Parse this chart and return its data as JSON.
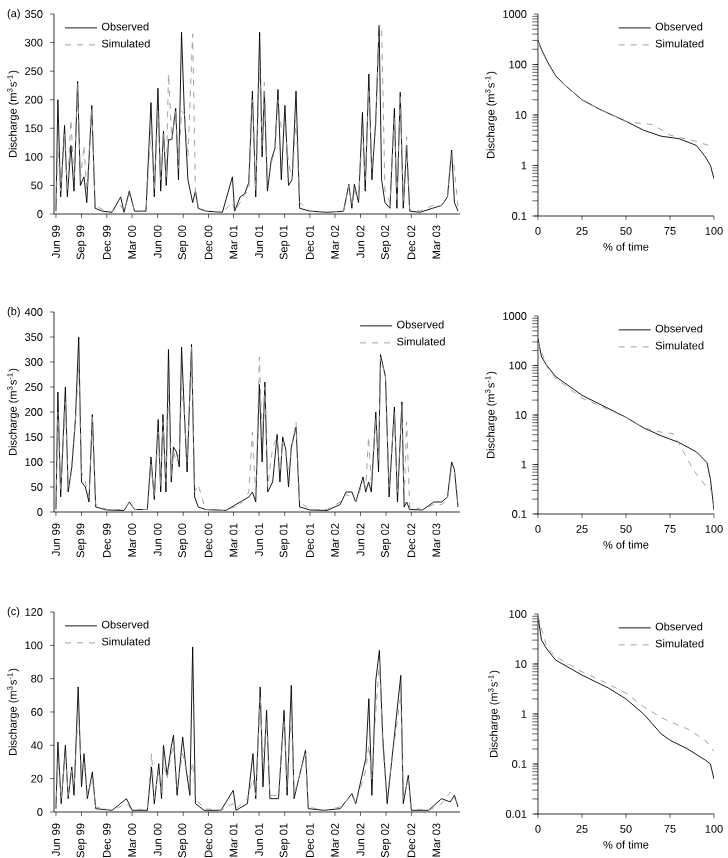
{
  "chart_data": [
    {
      "type": "line",
      "title": "(a)",
      "ylabel": "Discharge (m$^{3}$s$^{-1}$)",
      "legend": "top left",
      "xlim": [
        "1999-05-25",
        "2003-05-25"
      ],
      "ylim": [
        0,
        350
      ],
      "yticks": [
        0,
        50,
        100,
        150,
        200,
        250,
        300,
        350
      ],
      "xticks": [
        {
          "value": "1999-06-01",
          "label": "Jun 99"
        },
        {
          "value": "1999-09-01",
          "label": "Sep 99"
        },
        {
          "value": "1999-12-01",
          "label": "Dec 99"
        },
        {
          "value": "2000-03-01",
          "label": "Mar 00"
        },
        {
          "value": "2000-06-01",
          "label": "Jun 00"
        },
        {
          "value": "2000-09-01",
          "label": "Sep 00"
        },
        {
          "value": "2000-12-01",
          "label": "Dec 00"
        },
        {
          "value": "2001-03-01",
          "label": "Mar 01"
        },
        {
          "value": "2001-06-01",
          "label": "Jun 01"
        },
        {
          "value": "2001-09-01",
          "label": "Sep 01"
        },
        {
          "value": "2001-12-01",
          "label": "Dec 01"
        },
        {
          "value": "2002-03-01",
          "label": "Mar 02"
        },
        {
          "value": "2002-06-01",
          "label": "Jun 02"
        },
        {
          "value": "2002-09-01",
          "label": "Sep 02"
        },
        {
          "value": "2002-12-01",
          "label": "Dec 02"
        },
        {
          "value": "2003-03-01",
          "label": "Mar 03"
        }
      ],
      "x": [
        "1999-06-01",
        "1999-06-08",
        "1999-06-18",
        "1999-07-02",
        "1999-07-12",
        "1999-07-25",
        "1999-08-05",
        "1999-08-18",
        "1999-08-28",
        "1999-09-10",
        "1999-09-20",
        "1999-10-08",
        "1999-10-20",
        "1999-11-15",
        "1999-12-20",
        "2000-01-20",
        "2000-02-01",
        "2000-02-20",
        "2000-03-10",
        "2000-04-20",
        "2000-05-08",
        "2000-05-20",
        "2000-06-02",
        "2000-06-12",
        "2000-06-22",
        "2000-07-02",
        "2000-07-10",
        "2000-07-22",
        "2000-08-05",
        "2000-08-15",
        "2000-08-26",
        "2000-09-05",
        "2000-09-18",
        "2000-10-05",
        "2000-10-15",
        "2000-10-25",
        "2000-11-20",
        "2001-01-20",
        "2001-02-25",
        "2001-03-05",
        "2001-03-25",
        "2001-04-10",
        "2001-04-25",
        "2001-05-08",
        "2001-05-20",
        "2001-06-03",
        "2001-06-12",
        "2001-06-20",
        "2001-07-01",
        "2001-07-15",
        "2001-07-28",
        "2001-08-08",
        "2001-08-20",
        "2001-09-02",
        "2001-09-15",
        "2001-09-28",
        "2001-10-12",
        "2001-10-25",
        "2001-12-01",
        "2002-02-01",
        "2002-04-01",
        "2002-04-20",
        "2002-05-01",
        "2002-05-10",
        "2002-05-25",
        "2002-06-08",
        "2002-06-18",
        "2002-07-01",
        "2002-07-12",
        "2002-07-26",
        "2002-08-07",
        "2002-08-16",
        "2002-08-28",
        "2002-09-15",
        "2002-10-01",
        "2002-10-10",
        "2002-10-22",
        "2002-11-02",
        "2002-11-14",
        "2002-11-25",
        "2003-01-01",
        "2003-02-15",
        "2003-03-20",
        "2003-04-10",
        "2003-04-25",
        "2003-05-05",
        "2003-05-18"
      ],
      "series": [
        {
          "name": "Observed",
          "color": "#000000",
          "line_style": "solid",
          "values": [
            5,
            200,
            30,
            155,
            30,
            120,
            40,
            232,
            50,
            65,
            20,
            190,
            10,
            5,
            3,
            30,
            3,
            40,
            5,
            5,
            195,
            30,
            220,
            40,
            145,
            50,
            130,
            130,
            185,
            60,
            318,
            180,
            60,
            20,
            40,
            10,
            5,
            3,
            65,
            5,
            30,
            35,
            55,
            215,
            30,
            318,
            100,
            215,
            40,
            95,
            115,
            218,
            60,
            190,
            50,
            60,
            215,
            10,
            5,
            3,
            5,
            52,
            10,
            52,
            20,
            178,
            40,
            245,
            60,
            165,
            330,
            60,
            20,
            10,
            185,
            10,
            213,
            10,
            120,
            5,
            3,
            10,
            15,
            30,
            112,
            20,
            5
          ]
        },
        {
          "name": "Simulated",
          "color": "#999999",
          "line_style": "dashed",
          "values": [
            5,
            120,
            40,
            140,
            40,
            165,
            60,
            230,
            60,
            120,
            40,
            185,
            15,
            8,
            4,
            15,
            5,
            35,
            5,
            5,
            150,
            40,
            180,
            60,
            140,
            60,
            245,
            130,
            180,
            80,
            180,
            175,
            100,
            315,
            40,
            15,
            5,
            3,
            20,
            5,
            20,
            35,
            40,
            200,
            40,
            260,
            120,
            230,
            60,
            90,
            110,
            200,
            150,
            150,
            90,
            60,
            165,
            20,
            5,
            3,
            5,
            50,
            15,
            40,
            25,
            150,
            60,
            220,
            80,
            150,
            330,
            330,
            40,
            20,
            170,
            20,
            210,
            20,
            135,
            8,
            5,
            15,
            15,
            30,
            110,
            80,
            10
          ]
        }
      ]
    },
    {
      "type": "line",
      "xlabel": "% of time",
      "ylabel": "Discharge (m$^{3}$s$^{-1}$)",
      "legend": "top right",
      "log": true,
      "xlim": [
        0,
        100
      ],
      "xticks": [
        0,
        25,
        50,
        75,
        100
      ],
      "ylim": [
        0.1,
        1000
      ],
      "yticks": [
        0.1,
        1,
        10,
        100,
        1000
      ],
      "series": [
        {
          "name": "Observed",
          "color": "#000000",
          "line_style": "solid",
          "x": [
            0,
            2,
            5,
            10,
            15,
            25,
            35,
            50,
            60,
            70,
            80,
            90,
            95,
            98,
            100
          ],
          "values": [
            300,
            200,
            120,
            60,
            40,
            20,
            13,
            7.5,
            5,
            3.8,
            3.4,
            2.5,
            1.5,
            1,
            0.55
          ]
        },
        {
          "name": "Simulated",
          "color": "#999999",
          "line_style": "dashed",
          "x": [
            0,
            2,
            5,
            10,
            15,
            25,
            35,
            50,
            55,
            65,
            75,
            80,
            90,
            100
          ],
          "values": [
            280,
            190,
            115,
            58,
            40,
            20,
            13,
            7.5,
            7,
            6.5,
            4,
            3.6,
            3,
            2.3
          ]
        }
      ]
    },
    {
      "type": "line",
      "title": "(b)",
      "ylabel": "Discharge (m$^{3}$s$^{-1}$)",
      "legend": "top right",
      "xlim": [
        "1999-05-25",
        "2003-05-25"
      ],
      "ylim": [
        0,
        400
      ],
      "yticks": [
        0,
        50,
        100,
        150,
        200,
        250,
        300,
        350,
        400
      ],
      "xticks": [
        {
          "value": "1999-06-01",
          "label": "Jun 99"
        },
        {
          "value": "1999-09-01",
          "label": "Sep 99"
        },
        {
          "value": "1999-12-01",
          "label": "Dec 99"
        },
        {
          "value": "2000-03-01",
          "label": "Mar 00"
        },
        {
          "value": "2000-06-01",
          "label": "Jun 00"
        },
        {
          "value": "2000-09-01",
          "label": "Sep 00"
        },
        {
          "value": "2000-12-01",
          "label": "Dec 00"
        },
        {
          "value": "2001-03-01",
          "label": "Mar 01"
        },
        {
          "value": "2001-06-01",
          "label": "Jun 01"
        },
        {
          "value": "2001-09-01",
          "label": "Sep 01"
        },
        {
          "value": "2001-12-01",
          "label": "Dec 01"
        },
        {
          "value": "2002-03-01",
          "label": "Mar 02"
        },
        {
          "value": "2002-06-01",
          "label": "Jun 02"
        },
        {
          "value": "2002-09-01",
          "label": "Sep 02"
        },
        {
          "value": "2002-12-01",
          "label": "Dec 02"
        },
        {
          "value": "2003-03-01",
          "label": "Mar 03"
        }
      ],
      "x": [
        "1999-06-01",
        "1999-06-08",
        "1999-06-18",
        "1999-07-05",
        "1999-07-15",
        "1999-07-28",
        "1999-08-10",
        "1999-08-22",
        "1999-09-01",
        "1999-09-15",
        "1999-09-28",
        "1999-10-10",
        "1999-10-22",
        "1999-12-01",
        "2000-02-01",
        "2000-02-20",
        "2000-03-10",
        "2000-04-25",
        "2000-05-08",
        "2000-05-20",
        "2000-06-03",
        "2000-06-12",
        "2000-06-20",
        "2000-07-01",
        "2000-07-10",
        "2000-07-20",
        "2000-07-28",
        "2000-08-08",
        "2000-08-18",
        "2000-08-26",
        "2000-09-05",
        "2000-09-15",
        "2000-10-01",
        "2000-10-12",
        "2000-10-25",
        "2000-11-20",
        "2001-02-01",
        "2001-03-25",
        "2001-04-25",
        "2001-05-08",
        "2001-05-20",
        "2001-06-02",
        "2001-06-12",
        "2001-06-22",
        "2001-07-02",
        "2001-07-20",
        "2001-08-05",
        "2001-08-15",
        "2001-08-25",
        "2001-09-05",
        "2001-09-15",
        "2001-09-25",
        "2001-10-12",
        "2001-10-25",
        "2001-12-01",
        "2002-02-01",
        "2002-03-20",
        "2002-04-10",
        "2002-05-01",
        "2002-05-15",
        "2002-06-10",
        "2002-06-20",
        "2002-06-30",
        "2002-07-10",
        "2002-07-26",
        "2002-08-05",
        "2002-08-12",
        "2002-08-30",
        "2002-09-12",
        "2002-10-01",
        "2002-10-12",
        "2002-10-28",
        "2002-11-05",
        "2002-11-14",
        "2002-11-25",
        "2003-01-10",
        "2003-02-20",
        "2003-03-20",
        "2003-04-10",
        "2003-04-25",
        "2003-05-05",
        "2003-05-18"
      ],
      "series": [
        {
          "name": "Observed",
          "color": "#000000",
          "line_style": "solid",
          "values": [
            5,
            240,
            30,
            250,
            40,
            90,
            185,
            350,
            60,
            50,
            20,
            195,
            10,
            4,
            3,
            20,
            5,
            5,
            110,
            25,
            185,
            40,
            195,
            40,
            325,
            60,
            130,
            120,
            90,
            330,
            200,
            80,
            335,
            30,
            10,
            5,
            3,
            20,
            30,
            40,
            20,
            255,
            100,
            260,
            40,
            60,
            155,
            60,
            150,
            125,
            50,
            130,
            170,
            10,
            4,
            3,
            15,
            40,
            40,
            20,
            70,
            40,
            60,
            40,
            200,
            80,
            315,
            270,
            30,
            210,
            20,
            220,
            10,
            20,
            5,
            4,
            20,
            20,
            30,
            100,
            85,
            10
          ]
        },
        {
          "name": "Simulated",
          "color": "#999999",
          "line_style": "dashed",
          "values": [
            5,
            200,
            40,
            220,
            50,
            80,
            180,
            290,
            80,
            60,
            30,
            190,
            15,
            5,
            5,
            20,
            5,
            5,
            95,
            30,
            160,
            50,
            180,
            60,
            240,
            70,
            120,
            100,
            120,
            250,
            200,
            100,
            330,
            40,
            55,
            5,
            3,
            15,
            40,
            160,
            30,
            310,
            150,
            250,
            50,
            130,
            150,
            80,
            140,
            120,
            80,
            120,
            180,
            20,
            5,
            5,
            20,
            35,
            30,
            20,
            60,
            50,
            150,
            60,
            190,
            100,
            310,
            270,
            50,
            200,
            40,
            215,
            20,
            180,
            10,
            5,
            15,
            15,
            25,
            90,
            80,
            10
          ]
        }
      ]
    },
    {
      "type": "line",
      "xlabel": "% of time",
      "ylabel": "Discharge (m$^{3}$s$^{-1}$)",
      "legend": "top right",
      "log": true,
      "xlim": [
        0,
        100
      ],
      "xticks": [
        0,
        25,
        50,
        75,
        100
      ],
      "ylim": [
        0.1,
        1000
      ],
      "yticks": [
        0.1,
        1,
        10,
        100,
        1000
      ],
      "series": [
        {
          "name": "Observed",
          "color": "#000000",
          "line_style": "solid",
          "x": [
            0,
            2,
            5,
            10,
            25,
            50,
            60,
            70,
            80,
            90,
            96,
            98,
            100
          ],
          "values": [
            350,
            150,
            100,
            60,
            25,
            9,
            5.5,
            3.8,
            2.8,
            1.8,
            1.1,
            0.5,
            0.12
          ]
        },
        {
          "name": "Simulated",
          "color": "#999999",
          "line_style": "dashed",
          "x": [
            0,
            5,
            10,
            25,
            50,
            60,
            70,
            77,
            82,
            88,
            95,
            98,
            100
          ],
          "values": [
            300,
            95,
            55,
            22,
            9,
            5.5,
            4.5,
            4.2,
            2,
            0.8,
            0.38,
            0.35,
            0.14
          ]
        }
      ]
    },
    {
      "type": "line",
      "title": "(c)",
      "ylabel": "Discharge (m$^{3}$s$^{-1}$)",
      "legend": "top left",
      "xlim": [
        "1999-05-25",
        "2003-05-25"
      ],
      "ylim": [
        0,
        120
      ],
      "yticks": [
        0,
        20,
        40,
        60,
        80,
        100,
        120
      ],
      "xticks": [
        {
          "value": "1999-06-01",
          "label": "Jun 99"
        },
        {
          "value": "1999-09-01",
          "label": "Sep 99"
        },
        {
          "value": "1999-12-01",
          "label": "Dec 99"
        },
        {
          "value": "2000-03-01",
          "label": "Mar 00"
        },
        {
          "value": "2000-06-01",
          "label": "Jun 00"
        },
        {
          "value": "2000-09-01",
          "label": "Sep 00"
        },
        {
          "value": "2000-12-01",
          "label": "Dec 00"
        },
        {
          "value": "2001-03-01",
          "label": "Mar 01"
        },
        {
          "value": "2001-06-01",
          "label": "Jun 01"
        },
        {
          "value": "2001-09-01",
          "label": "Sep 01"
        },
        {
          "value": "2001-12-01",
          "label": "Dec 01"
        },
        {
          "value": "2002-03-01",
          "label": "Mar 02"
        },
        {
          "value": "2002-06-01",
          "label": "Jun 02"
        },
        {
          "value": "2002-09-01",
          "label": "Sep 02"
        },
        {
          "value": "2002-12-01",
          "label": "Dec 02"
        },
        {
          "value": "2003-03-01",
          "label": "Mar 03"
        }
      ],
      "x": [
        "1999-06-01",
        "1999-06-08",
        "1999-06-20",
        "1999-07-05",
        "1999-07-15",
        "1999-07-28",
        "1999-08-05",
        "1999-08-20",
        "1999-09-01",
        "1999-09-10",
        "1999-09-22",
        "1999-10-10",
        "1999-10-22",
        "1999-12-20",
        "2000-02-10",
        "2000-03-01",
        "2000-04-25",
        "2000-05-10",
        "2000-05-20",
        "2000-06-05",
        "2000-06-15",
        "2000-06-22",
        "2000-07-05",
        "2000-07-20",
        "2000-07-28",
        "2000-08-10",
        "2000-08-30",
        "2000-09-12",
        "2000-09-25",
        "2000-10-05",
        "2000-10-15",
        "2000-11-15",
        "2001-01-15",
        "2001-02-28",
        "2001-03-10",
        "2001-04-20",
        "2001-05-10",
        "2001-05-20",
        "2001-06-05",
        "2001-06-15",
        "2001-06-28",
        "2001-07-10",
        "2001-08-10",
        "2001-08-30",
        "2001-09-10",
        "2001-09-25",
        "2001-10-05",
        "2001-11-15",
        "2001-11-25",
        "2002-01-20",
        "2002-03-20",
        "2002-05-01",
        "2002-05-15",
        "2002-06-20",
        "2002-07-01",
        "2002-07-12",
        "2002-07-26",
        "2002-08-08",
        "2002-08-20",
        "2002-09-05",
        "2002-10-24",
        "2002-11-02",
        "2002-11-20",
        "2002-12-01",
        "2003-02-01",
        "2003-03-20",
        "2003-04-20",
        "2003-05-05",
        "2003-05-18"
      ],
      "series": [
        {
          "name": "Observed",
          "color": "#000000",
          "line_style": "solid",
          "values": [
            2,
            42,
            5,
            40,
            8,
            27,
            10,
            75,
            15,
            35,
            8,
            24,
            2,
            1,
            8,
            1,
            1,
            27,
            5,
            29,
            8,
            40,
            22,
            39,
            46,
            10,
            45,
            25,
            10,
            99,
            5,
            1,
            1,
            13,
            1,
            5,
            35,
            8,
            75,
            15,
            61,
            8,
            8,
            61,
            10,
            76,
            8,
            37,
            2,
            1,
            2,
            11,
            5,
            32,
            68,
            10,
            79,
            97,
            45,
            5,
            82,
            5,
            22,
            1,
            1,
            8,
            6,
            10,
            3
          ]
        },
        {
          "name": "Simulated",
          "color": "#999999",
          "line_style": "dashed",
          "values": [
            2,
            30,
            8,
            35,
            10,
            25,
            15,
            60,
            25,
            30,
            10,
            20,
            3,
            1,
            5,
            1,
            2,
            35,
            8,
            25,
            10,
            30,
            20,
            35,
            40,
            15,
            35,
            25,
            20,
            30,
            8,
            2,
            1,
            5,
            2,
            8,
            20,
            10,
            70,
            30,
            55,
            10,
            10,
            55,
            15,
            60,
            10,
            35,
            3,
            1,
            3,
            10,
            5,
            25,
            40,
            20,
            60,
            90,
            40,
            10,
            70,
            8,
            20,
            2,
            1,
            5,
            12,
            8,
            5
          ]
        }
      ]
    },
    {
      "type": "line",
      "xlabel": "% of time",
      "ylabel": "Discharge (m$^{3}$s$^{-1}$)",
      "legend": "top right",
      "log": true,
      "xlim": [
        0,
        100
      ],
      "xticks": [
        0,
        25,
        50,
        75,
        100
      ],
      "ylim": [
        0.01,
        100
      ],
      "yticks": [
        0.01,
        0.1,
        1,
        10,
        100
      ],
      "series": [
        {
          "name": "Observed",
          "color": "#000000",
          "line_style": "solid",
          "x": [
            0,
            2,
            5,
            10,
            25,
            40,
            50,
            60,
            70,
            75,
            85,
            95,
            98,
            100
          ],
          "values": [
            90,
            30,
            20,
            12,
            6,
            3.3,
            2,
            1,
            0.4,
            0.3,
            0.2,
            0.12,
            0.1,
            0.05
          ]
        },
        {
          "name": "Simulated",
          "color": "#999999",
          "line_style": "dashed",
          "x": [
            0,
            5,
            10,
            25,
            40,
            50,
            60,
            70,
            75,
            85,
            95,
            100
          ],
          "values": [
            90,
            22,
            14,
            7,
            4,
            2.6,
            1.4,
            0.85,
            0.7,
            0.5,
            0.3,
            0.18
          ]
        }
      ]
    }
  ]
}
